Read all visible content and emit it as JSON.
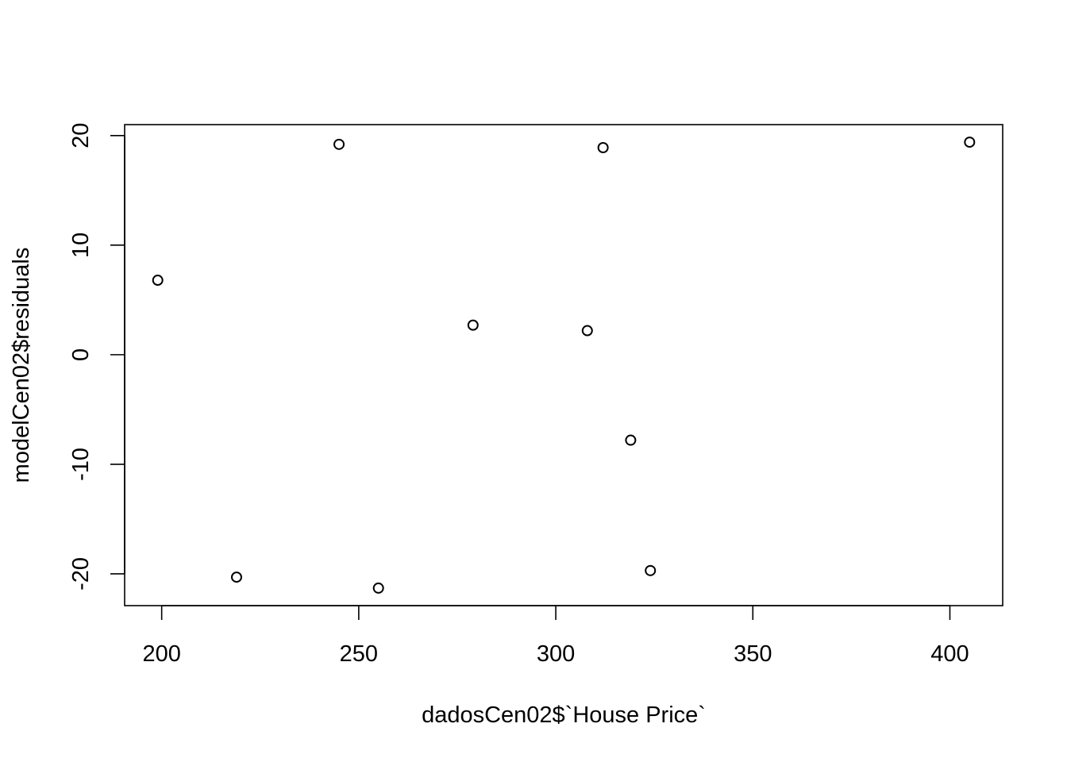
{
  "chart_data": {
    "type": "scatter",
    "title": "",
    "xlabel": "dadosCen02$`House Price`",
    "ylabel": "modelCen02$residuals",
    "xlim": [
      190.6,
      413.4
    ],
    "ylim": [
      -22.9,
      21.0
    ],
    "xticks": [
      200,
      250,
      300,
      350,
      400
    ],
    "yticks": [
      -20,
      -10,
      0,
      10,
      20
    ],
    "xtick_labels": [
      "200",
      "250",
      "300",
      "350",
      "400"
    ],
    "ytick_labels": [
      "-20",
      "-10",
      "0",
      "10",
      "20"
    ],
    "grid": false,
    "legend": false,
    "marker": "open-circle",
    "points": [
      {
        "x": 199,
        "y": 6.8
      },
      {
        "x": 219,
        "y": -20.3
      },
      {
        "x": 245,
        "y": 19.2
      },
      {
        "x": 255,
        "y": -21.3
      },
      {
        "x": 279,
        "y": 2.7
      },
      {
        "x": 308,
        "y": 2.2
      },
      {
        "x": 312,
        "y": 18.9
      },
      {
        "x": 319,
        "y": -7.8
      },
      {
        "x": 324,
        "y": -19.7
      },
      {
        "x": 405,
        "y": 19.4
      }
    ]
  }
}
